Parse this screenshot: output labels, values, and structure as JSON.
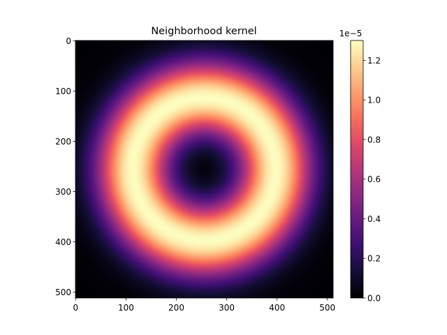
{
  "chart_data": {
    "type": "heatmap",
    "title": "Neighborhood kernel",
    "xlabel": "",
    "ylabel": "",
    "x_range": [
      0,
      511
    ],
    "y_range": [
      0,
      511
    ],
    "y_inverted": true,
    "x_ticks": [
      0,
      100,
      200,
      300,
      400,
      500
    ],
    "y_ticks": [
      0,
      100,
      200,
      300,
      400,
      500
    ],
    "colormap": "magma",
    "grid": false,
    "pattern": {
      "shape": "ring",
      "center": [
        256,
        256
      ],
      "peak_radius": 142,
      "radial_sigma": 50,
      "peak_value": 1.3e-05
    },
    "colorbar": {
      "min": 0.0,
      "max": 1.3e-05,
      "multiplier_label": "1e−5",
      "tick_values": [
        0.0,
        0.2,
        0.4,
        0.6,
        0.8,
        1.0,
        1.2
      ],
      "tick_labels": [
        "0.0",
        "0.2",
        "0.4",
        "0.6",
        "0.8",
        "1.0",
        "1.2"
      ],
      "placement": "right"
    }
  }
}
